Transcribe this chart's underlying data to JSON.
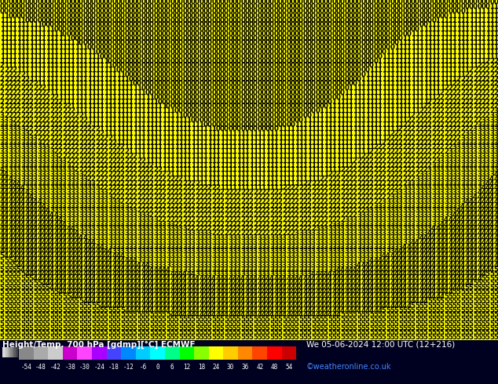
{
  "title_left": "Height/Temp. 700 hPa [gdmp][°C] ECMWF",
  "title_right": "We 05-06-2024 12:00 UTC (12+216)",
  "credit": "©weatheronline.co.uk",
  "colorbar_values": [
    -54,
    -48,
    -42,
    -38,
    -30,
    -24,
    -18,
    -12,
    -6,
    0,
    6,
    12,
    18,
    24,
    30,
    36,
    42,
    48,
    54
  ],
  "bg_color": "#ffff00",
  "map_bg": "#ffff00",
  "legend_bg": "#000020",
  "colorbar_colors": [
    "#888888",
    "#aaaaaa",
    "#cccccc",
    "#cc00cc",
    "#ff44ff",
    "#aa00ff",
    "#4444ff",
    "#0088ff",
    "#00ccff",
    "#00ffff",
    "#00ff88",
    "#00ff00",
    "#88ff00",
    "#ffff00",
    "#ffcc00",
    "#ff8800",
    "#ff4400",
    "#ff0000",
    "#cc0000"
  ],
  "cb_labels": [
    "-54",
    "-48",
    "-42",
    "-38",
    "-30",
    "-24",
    "-18",
    "-12",
    "-6",
    "0",
    "6",
    "12",
    "18",
    "24",
    "30",
    "36",
    "42",
    "48",
    "54"
  ],
  "grid_rows": 75,
  "grid_cols": 120,
  "fig_width": 6.34,
  "fig_height": 4.9,
  "dpi": 100
}
